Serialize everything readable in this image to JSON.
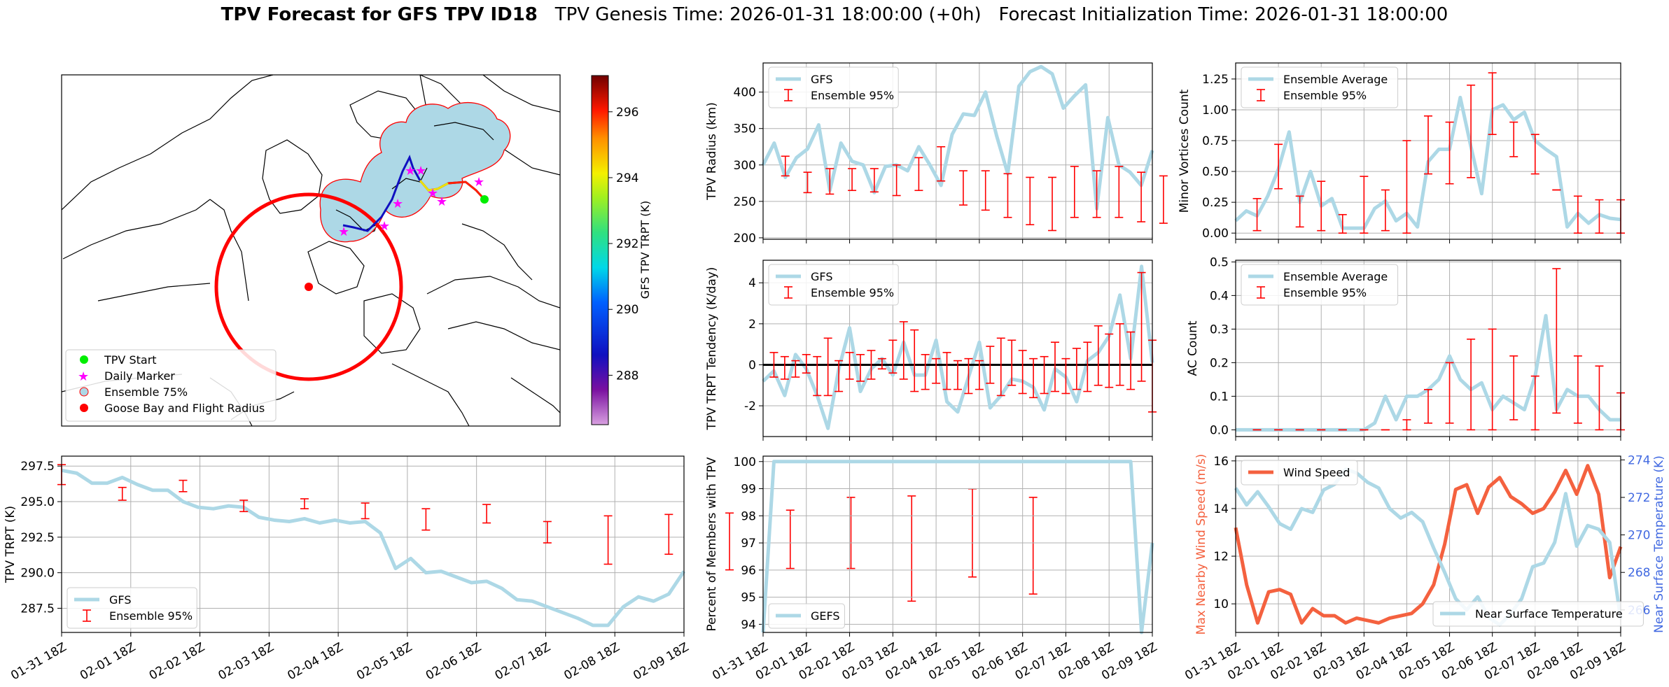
{
  "header": {
    "title_bold": "TPV Forecast for GFS TPV ID18",
    "title_rest": "TPV Genesis Time: 2026-01-31 18:00:00 (+0h)   Forecast Initialization Time: 2026-01-31 18:00:00"
  },
  "colors": {
    "gfs_line": "#add8e6",
    "errorbar": "#ff0000",
    "wind": "#f4613f",
    "temp_axis": "#4169e1",
    "map_fill": "#add8e6"
  },
  "x_ticks": [
    "01-31 18Z",
    "02-01 18Z",
    "02-02 18Z",
    "02-03 18Z",
    "02-04 18Z",
    "02-05 18Z",
    "02-06 18Z",
    "02-07 18Z",
    "02-08 18Z",
    "02-09 18Z"
  ],
  "map": {
    "colorbar_label": "GFS TPV TRPT (K)",
    "colorbar_ticks": [
      "296",
      "294",
      "292",
      "290",
      "288"
    ],
    "colorbar_values": [
      296,
      294,
      292,
      290,
      288
    ],
    "colorbar_range": [
      286.5,
      297.1
    ],
    "legend": [
      "TPV Start",
      "Daily Marker",
      "Ensemble 75%",
      "Goose Bay and Flight Radius"
    ]
  },
  "chart_data": [
    {
      "id": "radius",
      "type": "line",
      "ylabel": "TPV Radius (km)",
      "ylim": [
        198,
        440
      ],
      "yticks": [
        200,
        250,
        300,
        350,
        400
      ],
      "legend_position": "top-left",
      "legend": [
        "GFS",
        "Ensemble 95%"
      ],
      "series": [
        {
          "name": "GFS",
          "values": [
            300,
            330,
            283,
            310,
            322,
            355,
            265,
            330,
            305,
            300,
            262,
            298,
            300,
            292,
            325,
            300,
            272,
            342,
            370,
            368,
            400,
            340,
            288,
            408,
            428,
            435,
            425,
            378,
            395,
            410,
            240,
            365,
            300,
            290,
            272,
            320
          ]
        }
      ],
      "errorbars": {
        "x": [
          2,
          4,
          6,
          8,
          10,
          12,
          14,
          16,
          18,
          20,
          22,
          24,
          26,
          28,
          30,
          32,
          34,
          36
        ],
        "low": [
          285,
          262,
          260,
          265,
          263,
          258,
          265,
          278,
          245,
          238,
          228,
          218,
          210,
          228,
          228,
          228,
          222,
          220
        ],
        "high": [
          312,
          290,
          295,
          295,
          295,
          300,
          310,
          325,
          292,
          292,
          288,
          283,
          283,
          298,
          292,
          298,
          290,
          285
        ]
      }
    },
    {
      "id": "tendency",
      "type": "line",
      "ylabel": "TPV TRPT Tendency (K/day)",
      "ylim": [
        -3.5,
        5.1
      ],
      "yticks": [
        -2,
        0,
        2,
        4
      ],
      "legend_position": "top-left",
      "legend": [
        "GFS",
        "Ensemble 95%"
      ],
      "series": [
        {
          "name": "GFS",
          "values": [
            -0.8,
            -0.3,
            -1.5,
            0.5,
            -0.2,
            -1.5,
            -3.1,
            -0.2,
            1.8,
            -1.3,
            -0.2,
            0.3,
            -0.5,
            1.1,
            -0.5,
            -0.5,
            1.2,
            -1.8,
            -2.3,
            -0.6,
            1.1,
            -2.1,
            -1.5,
            -0.7,
            -0.8,
            -1.1,
            -2.2,
            -0.2,
            -0.6,
            -1.8,
            0.2,
            0.6,
            1.4,
            3.4,
            0.3,
            4.8,
            0.1
          ]
        },
        {
          "name": "",
          "values": [
            0,
            0,
            0,
            0,
            0,
            0,
            0,
            0,
            0,
            0,
            0,
            0,
            0,
            0,
            0,
            0,
            0,
            0,
            0,
            0,
            0,
            0,
            0,
            0,
            0,
            0,
            0,
            0,
            0,
            0,
            0,
            0,
            0,
            0,
            0,
            0,
            0
          ]
        }
      ],
      "errorbars": {
        "x": [
          1,
          2,
          3,
          4,
          5,
          6,
          7,
          8,
          9,
          10,
          11,
          12,
          13,
          14,
          15,
          16,
          17,
          18,
          19,
          20,
          21,
          22,
          23,
          24,
          25,
          26,
          27,
          28,
          29,
          30,
          31,
          32,
          33,
          34,
          35,
          36
        ],
        "low": [
          -0.6,
          -0.7,
          -0.6,
          -0.4,
          -1.5,
          -1.5,
          -1.3,
          -0.7,
          -0.8,
          -0.7,
          -0.2,
          -0.4,
          -0.7,
          -1.3,
          -1.2,
          -0.9,
          -1.2,
          -1.2,
          -1.4,
          -1.2,
          -0.9,
          -1.5,
          -1.0,
          -1.4,
          -1.6,
          -1.4,
          -1.3,
          -1.4,
          -1.2,
          -1.3,
          -1.0,
          -1.1,
          -1.0,
          -1.2,
          -0.8,
          -2.3
        ],
        "high": [
          0.6,
          0.4,
          0.2,
          0.5,
          0.4,
          1.3,
          0.2,
          0.6,
          0.5,
          0.7,
          0.3,
          1.2,
          2.1,
          1.7,
          0.5,
          0.3,
          0.6,
          0.2,
          0.3,
          0.2,
          0.9,
          1.3,
          1.2,
          0.7,
          0.3,
          0.4,
          1.1,
          0.3,
          0.8,
          1.1,
          1.9,
          1.5,
          2.0,
          1.6,
          4.5,
          1.2
        ]
      }
    },
    {
      "id": "minor",
      "type": "line",
      "ylabel": "Minor Vortices Count",
      "ylim": [
        -0.05,
        1.38
      ],
      "yticks": [
        0.0,
        0.25,
        0.5,
        0.75,
        1.0,
        1.25
      ],
      "legend_position": "top-left",
      "legend": [
        "Ensemble Average",
        "Ensemble 95%"
      ],
      "series": [
        {
          "name": "Ensemble Average",
          "values": [
            0.1,
            0.18,
            0.14,
            0.3,
            0.52,
            0.82,
            0.25,
            0.5,
            0.22,
            0.28,
            0.04,
            0.04,
            0.04,
            0.2,
            0.26,
            0.1,
            0.16,
            0.05,
            0.58,
            0.68,
            0.68,
            1.1,
            0.7,
            0.32,
            1.0,
            1.04,
            0.92,
            0.98,
            0.75,
            0.68,
            0.62,
            0.05,
            0.16,
            0.08,
            0.15,
            0.12,
            0.11
          ]
        }
      ],
      "errorbars": {
        "x": [
          2,
          4,
          6,
          8,
          10,
          12,
          14,
          16,
          18,
          20,
          22,
          24,
          26,
          28,
          30,
          32,
          34,
          36
        ],
        "low": [
          0.02,
          0.36,
          0.05,
          0.02,
          0.0,
          0.0,
          0.02,
          0.0,
          0.48,
          0.4,
          0.45,
          0.8,
          0.62,
          0.48,
          0.35,
          0.0,
          0.0,
          0.0
        ],
        "high": [
          0.28,
          0.72,
          0.3,
          0.42,
          0.15,
          0.46,
          0.35,
          0.75,
          0.95,
          0.9,
          1.2,
          1.3,
          0.9,
          0.8,
          0.35,
          0.3,
          0.27,
          0.27
        ]
      }
    },
    {
      "id": "ac",
      "type": "line",
      "ylabel": "AC Count",
      "ylim": [
        -0.02,
        0.505
      ],
      "yticks": [
        0.0,
        0.1,
        0.2,
        0.3,
        0.4,
        0.5
      ],
      "legend_position": "top-left",
      "legend": [
        "Ensemble Average",
        "Ensemble 95%"
      ],
      "series": [
        {
          "name": "Ensemble Average",
          "values": [
            0,
            0,
            0,
            0,
            0,
            0,
            0,
            0,
            0,
            0,
            0,
            0,
            0,
            0.02,
            0.1,
            0.03,
            0.1,
            0.1,
            0.12,
            0.15,
            0.22,
            0.15,
            0.12,
            0.14,
            0.06,
            0.1,
            0.08,
            0.06,
            0.16,
            0.34,
            0.06,
            0.12,
            0.1,
            0.1,
            0.06,
            0.03,
            0.03
          ]
        }
      ],
      "errorbars": {
        "x": [
          2,
          4,
          6,
          8,
          10,
          12,
          14,
          16,
          18,
          20,
          22,
          24,
          26,
          28,
          30,
          32,
          34,
          36
        ],
        "low": [
          0,
          0,
          0,
          0,
          0,
          0,
          0,
          0,
          0.02,
          0.02,
          0.0,
          0.0,
          0.03,
          0.0,
          0.05,
          0.02,
          0.0,
          0.0
        ],
        "high": [
          0,
          0,
          0,
          0,
          0,
          0,
          0,
          0.03,
          0.12,
          0.2,
          0.27,
          0.3,
          0.22,
          0.16,
          0.48,
          0.22,
          0.19,
          0.11
        ]
      }
    },
    {
      "id": "trpt",
      "type": "line",
      "ylabel": "TPV TRPT (K)",
      "ylim": [
        285.8,
        298.2
      ],
      "yticks": [
        287.5,
        290.0,
        292.5,
        295.0,
        297.5
      ],
      "legend_position": "bottom-left",
      "legend": [
        "GFS",
        "Ensemble 95%"
      ],
      "series": [
        {
          "name": "GFS",
          "values": [
            297.2,
            297.0,
            296.3,
            296.3,
            296.7,
            296.2,
            295.8,
            295.8,
            295.0,
            294.6,
            294.5,
            294.7,
            294.6,
            293.9,
            293.7,
            293.6,
            293.8,
            293.5,
            293.7,
            293.5,
            293.6,
            292.8,
            290.3,
            291.0,
            290.0,
            290.1,
            289.7,
            289.3,
            289.4,
            288.9,
            288.1,
            288.0,
            287.6,
            287.2,
            286.8,
            286.3,
            286.3,
            287.6,
            288.3,
            288.0,
            288.5,
            290.1
          ]
        }
      ],
      "errorbars": {
        "x": [
          0,
          4,
          8,
          12,
          16,
          20,
          24,
          28,
          32,
          36,
          40,
          44,
          48,
          52,
          56,
          60,
          64
        ],
        "low": [
          296.2,
          295.1,
          295.7,
          294.3,
          294.5,
          293.8,
          293.0,
          293.5,
          292.1,
          290.6,
          291.3,
          290.2,
          290.3,
          290.3,
          288.0,
          289.7,
          288.5
        ],
        "high": [
          297.6,
          296.0,
          296.5,
          295.1,
          295.2,
          294.9,
          294.5,
          294.8,
          293.6,
          294.0,
          294.1,
          294.2,
          294.4,
          295.3,
          295.4,
          295.9,
          295.3
        ]
      }
    },
    {
      "id": "members",
      "type": "line",
      "ylabel": "Percent of Members with TPV",
      "ylim": [
        93.7,
        100.2
      ],
      "yticks": [
        94,
        95,
        96,
        97,
        98,
        99,
        100
      ],
      "legend_position": "bottom-left",
      "legend": [
        "GEFS"
      ],
      "series": [
        {
          "name": "GEFS",
          "values": [
            93.7,
            100,
            100,
            100,
            100,
            100,
            100,
            100,
            100,
            100,
            100,
            100,
            100,
            100,
            100,
            100,
            100,
            100,
            100,
            100,
            100,
            100,
            100,
            100,
            100,
            100,
            100,
            100,
            100,
            100,
            100,
            100,
            100,
            100,
            100,
            93.7,
            97.0
          ]
        }
      ]
    },
    {
      "id": "wind_temp",
      "type": "line",
      "ylabel": "Max Nearby Wind Speed (m/s)",
      "ylabel_right": "Near Surface Temperature (K)",
      "ylim": [
        8.8,
        16.2
      ],
      "yticks": [
        10,
        12,
        14,
        16
      ],
      "ylim_right": [
        264.8,
        274.2
      ],
      "yticks_right": [
        266,
        268,
        270,
        272,
        274
      ],
      "legend_position": "top-left / bottom-right",
      "legend": [
        "Wind Speed",
        "Near Surface Temperature"
      ],
      "series": [
        {
          "name": "Wind Speed",
          "values": [
            13.2,
            10.8,
            9.2,
            10.5,
            10.6,
            10.4,
            9.2,
            9.8,
            9.5,
            9.5,
            9.2,
            9.4,
            9.3,
            9.2,
            9.4,
            9.5,
            9.6,
            10.0,
            10.8,
            12.5,
            14.8,
            15.0,
            13.8,
            14.9,
            15.3,
            14.5,
            14.2,
            13.8,
            14.0,
            14.7,
            15.6,
            14.6,
            15.8,
            14.6,
            11.1,
            12.4
          ]
        },
        {
          "name": "Near Surface Temperature",
          "values": [
            272.5,
            271.6,
            272.3,
            271.5,
            270.6,
            270.3,
            271.4,
            271.2,
            272.4,
            272.7,
            273.5,
            273.3,
            272.8,
            272.5,
            271.4,
            270.9,
            271.2,
            270.7,
            269.3,
            268.0,
            266.6,
            266.0,
            266.7,
            265.6,
            265.2,
            265.8,
            266.6,
            268.3,
            268.5,
            269.6,
            272.2,
            269.4,
            270.5,
            270.3,
            269.6,
            265.5
          ]
        }
      ]
    }
  ]
}
